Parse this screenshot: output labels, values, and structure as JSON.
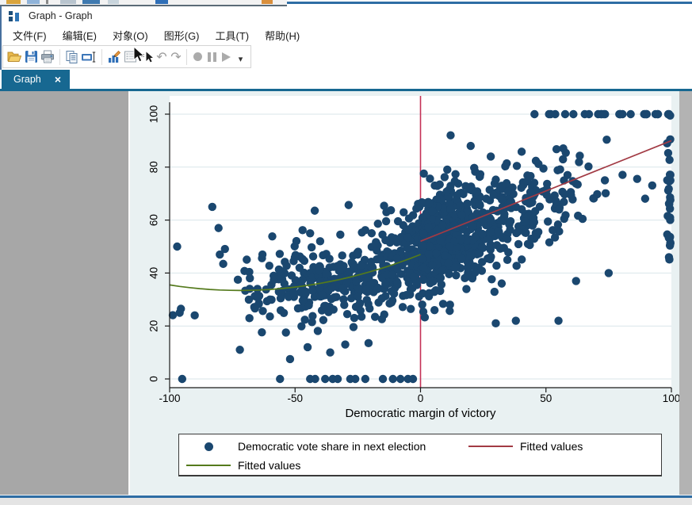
{
  "window": {
    "title": "Graph - Graph"
  },
  "menu": {
    "items": [
      "文件(F)",
      "编辑(E)",
      "对象(O)",
      "图形(G)",
      "工具(T)",
      "帮助(H)"
    ]
  },
  "toolbar": {
    "icons": [
      "open-folder",
      "save",
      "print",
      "copy",
      "rename",
      "graph-editor",
      "log-viewer",
      "pointer-tool",
      "undo",
      "redo",
      "record",
      "pause",
      "play",
      "toolbar-overflow"
    ]
  },
  "glyphs": {
    "tab_close": "×",
    "undo": "↶",
    "redo": "↷",
    "overflow": "▾"
  },
  "tab": {
    "label": "Graph"
  },
  "colors": {
    "scatter_navy": "#1a476f",
    "fit_right_red": "#a23a44",
    "fit_left_green": "#547a1c",
    "cutoff_line": "#c43156",
    "tab_blue": "#176891",
    "window_border_blue": "#2e6da4",
    "canvas_bg": "#e9f1f2",
    "plot_bg": "#ffffff",
    "grid": "#d9e6ea",
    "panel_gray": "#a7a7a7"
  },
  "chart_data": {
    "type": "scatter",
    "title": "",
    "xlabel": "Democratic margin of victory",
    "ylabel": "",
    "xlim": [
      -100,
      100
    ],
    "ylim": [
      0,
      100
    ],
    "x_ticks": [
      -100,
      -50,
      0,
      50,
      100
    ],
    "y_ticks": [
      0,
      20,
      40,
      60,
      80,
      100
    ],
    "grid": "horizontal",
    "legend": {
      "position": "bottom",
      "entries": [
        {
          "marker": "dot",
          "color": "#1a476f",
          "label": "Democratic vote share in next election"
        },
        {
          "marker": "line",
          "color": "#a23a44",
          "label": "Fitted values"
        },
        {
          "marker": "line",
          "color": "#547a1c",
          "label": "Fitted values"
        }
      ]
    },
    "series": [
      {
        "name": "Democratic vote share in next election",
        "type": "scatter",
        "color": "#1a476f",
        "marker_radius": 5.2,
        "n_points_approx": 1190,
        "generator": {
          "seed": 7,
          "clouds": [
            {
              "n": 420,
              "x_mean": -24,
              "x_sd": 21,
              "x_min": -99,
              "x_max": -0.3,
              "y_sd": 8.5,
              "y_min": 3
            },
            {
              "n": 690,
              "x_mean": 9,
              "x_sd": 27,
              "x_min": 0.3,
              "x_max": 99,
              "y_sd": 9.2,
              "y_min": 8
            }
          ],
          "trend": {
            "left_coef": [
              47,
              0.3775,
              0.002625
            ],
            "right_coef": [
              51,
              0.33
            ]
          },
          "top_row": {
            "n": 26,
            "x_min": 38,
            "x_max": 100,
            "y": 100,
            "bias": 0.6
          },
          "right_column": {
            "n": 30,
            "x_center": 99.6,
            "x_jitter": 1.8,
            "y_min": 45,
            "y_max": 100
          },
          "zero_row_x": [
            -95,
            -56,
            -44,
            -42,
            -38,
            -35,
            -33,
            -28,
            -26,
            -22,
            -15,
            -11,
            -8,
            -5,
            -3
          ],
          "extra_points": [
            [
              -97,
              50
            ],
            [
              -96,
              25
            ],
            [
              -95.5,
              26.5
            ],
            [
              -90,
              24
            ],
            [
              -83,
              65
            ],
            [
              -80.5,
              57
            ],
            [
              -80,
              47
            ],
            [
              -72,
              11
            ],
            [
              -65,
              34
            ],
            [
              -63,
              47
            ],
            [
              -60,
              30
            ],
            [
              -52,
              7.5
            ],
            [
              -45,
              12
            ],
            [
              -44,
              55
            ],
            [
              -40,
              52
            ],
            [
              -36,
              10
            ],
            [
              -30,
              13
            ],
            [
              30,
              21
            ],
            [
              38,
              22
            ],
            [
              55,
              22
            ],
            [
              62,
              37
            ],
            [
              75,
              40
            ],
            [
              12,
              92
            ],
            [
              20,
              88
            ],
            [
              28,
              84
            ]
          ]
        }
      },
      {
        "name": "Fitted values",
        "type": "line",
        "side": "left-of-cutoff",
        "color": "#547a1c",
        "model": "quadratic",
        "coefficients": [
          47,
          0.3775,
          0.002625
        ],
        "x_range": [
          -100,
          0
        ],
        "sample_points": [
          [
            -100,
            35.5
          ],
          [
            -80,
            33.6
          ],
          [
            -60,
            33.8
          ],
          [
            -40,
            36.1
          ],
          [
            -20,
            40.5
          ],
          [
            0,
            47
          ]
        ]
      },
      {
        "name": "Fitted values",
        "type": "line",
        "side": "right-of-cutoff",
        "color": "#a23a44",
        "model": "linear",
        "points": [
          [
            0,
            52
          ],
          [
            100,
            90
          ]
        ]
      },
      {
        "name": "cutoff",
        "type": "vline",
        "color": "#c43156",
        "x": 0
      }
    ]
  }
}
